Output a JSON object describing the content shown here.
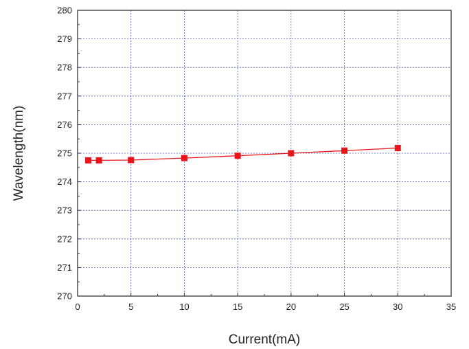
{
  "chart_data": {
    "type": "line",
    "title": "",
    "xlabel": "Current(mA)",
    "ylabel": "Wavelength(nm)",
    "xlim": [
      0,
      35
    ],
    "ylim": [
      270,
      280
    ],
    "x_ticks": [
      "0",
      "5",
      "10",
      "15",
      "20",
      "25",
      "30",
      "35"
    ],
    "y_ticks": [
      "270",
      "271",
      "272",
      "273",
      "274",
      "275",
      "276",
      "277",
      "278",
      "279",
      "280"
    ],
    "grid": true,
    "legend": "none",
    "series": [
      {
        "color": "#e8141b",
        "marker": "square",
        "x": [
          1,
          2,
          5,
          10,
          15,
          20,
          25,
          30
        ],
        "y": [
          274.75,
          274.75,
          274.76,
          274.83,
          274.91,
          275.0,
          275.09,
          275.18
        ]
      }
    ]
  }
}
